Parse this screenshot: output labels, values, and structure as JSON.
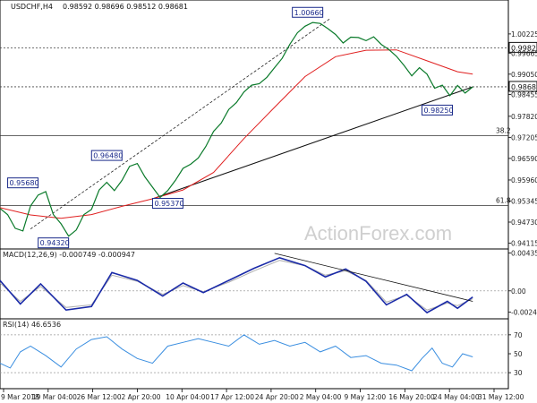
{
  "chart_data": [
    {
      "type": "line",
      "header": {
        "symbol": "USDCHF,H4",
        "ohlc": "0.98592 0.98696 0.98512 0.98681"
      },
      "watermark": "ActionForex.com",
      "y_ticks": [
        1.00225,
        0.9982,
        0.99665,
        0.9905,
        0.98681,
        0.98455,
        0.9782,
        0.97205,
        0.9659,
        0.9596,
        0.95345,
        0.9473,
        0.94115
      ],
      "y_tick_labels": [
        "1.00225",
        "0.99820",
        "0.99665",
        "0.99050",
        "0.98681",
        "0.98455",
        "0.97820",
        "0.97205",
        "0.96590",
        "0.95960",
        "0.95345",
        "0.94730",
        "0.94115"
      ],
      "highlight_levels": [
        {
          "label": "0.99820",
          "value": 0.9982
        },
        {
          "label": "0.98681",
          "value": 0.98681
        }
      ],
      "fib_levels": [
        {
          "label": "38.2",
          "value": 0.9725
        },
        {
          "label": "61.8",
          "value": 0.9521
        }
      ],
      "x_labels": [
        "9 Mar 2018",
        "19 Mar 04:00",
        "26 Mar 12:00",
        "2 Apr 20:00",
        "10 Apr 04:00",
        "17 Apr 12:00",
        "24 Apr 20:00",
        "2 May 04:00",
        "9 May 12:00",
        "16 May 20:00",
        "24 May 04:00",
        "31 May 12:00"
      ],
      "annotations": [
        {
          "label": "1.00660",
          "x": 0.605,
          "y": 1.0066
        },
        {
          "label": "0.96480",
          "x": 0.21,
          "y": 0.9648
        },
        {
          "label": "0.95680",
          "x": 0.045,
          "y": 0.9568
        },
        {
          "label": "0.94320",
          "x": 0.105,
          "y": 0.9432
        },
        {
          "label": "0.95370",
          "x": 0.33,
          "y": 0.9537
        },
        {
          "label": "0.98250",
          "x": 0.86,
          "y": 0.9825
        }
      ],
      "price_series": [
        [
          0.0,
          0.9513
        ],
        [
          0.015,
          0.9495
        ],
        [
          0.03,
          0.9455
        ],
        [
          0.045,
          0.9447
        ],
        [
          0.06,
          0.952
        ],
        [
          0.075,
          0.9552
        ],
        [
          0.09,
          0.9562
        ],
        [
          0.105,
          0.9495
        ],
        [
          0.12,
          0.9468
        ],
        [
          0.135,
          0.9432
        ],
        [
          0.15,
          0.945
        ],
        [
          0.165,
          0.9495
        ],
        [
          0.18,
          0.951
        ],
        [
          0.195,
          0.9567
        ],
        [
          0.21,
          0.9589
        ],
        [
          0.225,
          0.9565
        ],
        [
          0.24,
          0.9595
        ],
        [
          0.255,
          0.9636
        ],
        [
          0.27,
          0.9644
        ],
        [
          0.285,
          0.9605
        ],
        [
          0.3,
          0.9575
        ],
        [
          0.315,
          0.9545
        ],
        [
          0.33,
          0.9565
        ],
        [
          0.345,
          0.9595
        ],
        [
          0.36,
          0.963
        ],
        [
          0.375,
          0.9642
        ],
        [
          0.39,
          0.966
        ],
        [
          0.405,
          0.9694
        ],
        [
          0.42,
          0.9738
        ],
        [
          0.435,
          0.9762
        ],
        [
          0.45,
          0.9802
        ],
        [
          0.465,
          0.9822
        ],
        [
          0.48,
          0.9853
        ],
        [
          0.495,
          0.9873
        ],
        [
          0.51,
          0.9877
        ],
        [
          0.525,
          0.9896
        ],
        [
          0.54,
          0.9924
        ],
        [
          0.555,
          0.9951
        ],
        [
          0.57,
          0.9992
        ],
        [
          0.585,
          1.0026
        ],
        [
          0.6,
          1.0045
        ],
        [
          0.615,
          1.0056
        ],
        [
          0.63,
          1.0053
        ],
        [
          0.645,
          1.0038
        ],
        [
          0.66,
          1.0021
        ],
        [
          0.675,
          0.9996
        ],
        [
          0.69,
          1.0013
        ],
        [
          0.705,
          1.0012
        ],
        [
          0.72,
          1.0003
        ],
        [
          0.735,
          1.0014
        ],
        [
          0.75,
          0.9992
        ],
        [
          0.765,
          0.9977
        ],
        [
          0.78,
          0.9957
        ],
        [
          0.795,
          0.993
        ],
        [
          0.81,
          0.99
        ],
        [
          0.825,
          0.9924
        ],
        [
          0.84,
          0.9905
        ],
        [
          0.855,
          0.9864
        ],
        [
          0.87,
          0.9873
        ],
        [
          0.885,
          0.9842
        ],
        [
          0.9,
          0.9872
        ],
        [
          0.915,
          0.985
        ],
        [
          0.93,
          0.9868
        ]
      ],
      "ma_series": [
        [
          0.0,
          0.9515
        ],
        [
          0.06,
          0.9494
        ],
        [
          0.12,
          0.9484
        ],
        [
          0.18,
          0.9495
        ],
        [
          0.24,
          0.9519
        ],
        [
          0.3,
          0.9541
        ],
        [
          0.36,
          0.9567
        ],
        [
          0.42,
          0.9618
        ],
        [
          0.48,
          0.9717
        ],
        [
          0.54,
          0.9808
        ],
        [
          0.6,
          0.9898
        ],
        [
          0.66,
          0.9956
        ],
        [
          0.72,
          0.9975
        ],
        [
          0.78,
          0.9976
        ],
        [
          0.84,
          0.9944
        ],
        [
          0.9,
          0.9912
        ],
        [
          0.93,
          0.9905
        ]
      ],
      "channel_line": [
        [
          0.06,
          0.9453
        ],
        [
          0.65,
          1.0068
        ]
      ],
      "trend_line": [
        [
          0.3,
          0.9541
        ],
        [
          0.93,
          0.9868
        ]
      ],
      "macd": {
        "label": "MACD(12,26,9) -0.000749 -0.000947",
        "y_ticks": [
          0.004351,
          0.0,
          -0.002448
        ],
        "y_tick_labels": [
          "0.004351",
          "0.00",
          "-0.002448"
        ],
        "main": [
          [
            0.0,
            0.0012
          ],
          [
            0.04,
            -0.0015
          ],
          [
            0.08,
            0.0008
          ],
          [
            0.13,
            -0.0022
          ],
          [
            0.18,
            -0.0018
          ],
          [
            0.22,
            0.0021
          ],
          [
            0.27,
            0.0012
          ],
          [
            0.32,
            -0.0006
          ],
          [
            0.36,
            0.0009
          ],
          [
            0.4,
            -0.0002
          ],
          [
            0.45,
            0.0012
          ],
          [
            0.5,
            0.0026
          ],
          [
            0.55,
            0.0038
          ],
          [
            0.6,
            0.0029
          ],
          [
            0.64,
            0.0016
          ],
          [
            0.68,
            0.0025
          ],
          [
            0.72,
            0.0011
          ],
          [
            0.76,
            -0.0016
          ],
          [
            0.8,
            -0.0004
          ],
          [
            0.84,
            -0.0025
          ],
          [
            0.88,
            -0.0012
          ],
          [
            0.9,
            -0.002
          ],
          [
            0.93,
            -0.0007
          ]
        ],
        "signal": [
          [
            0.0,
            0.0009
          ],
          [
            0.04,
            -0.0012
          ],
          [
            0.08,
            0.0005
          ],
          [
            0.13,
            -0.0019
          ],
          [
            0.18,
            -0.0016
          ],
          [
            0.22,
            0.0018
          ],
          [
            0.27,
            0.0011
          ],
          [
            0.32,
            -0.0004
          ],
          [
            0.36,
            0.0006
          ],
          [
            0.4,
            -0.0001
          ],
          [
            0.45,
            0.001
          ],
          [
            0.5,
            0.0023
          ],
          [
            0.55,
            0.0035
          ],
          [
            0.6,
            0.0029
          ],
          [
            0.64,
            0.0018
          ],
          [
            0.68,
            0.0023
          ],
          [
            0.72,
            0.0012
          ],
          [
            0.76,
            -0.0013
          ],
          [
            0.8,
            -0.0005
          ],
          [
            0.84,
            -0.0022
          ],
          [
            0.88,
            -0.0014
          ],
          [
            0.9,
            -0.0017
          ],
          [
            0.93,
            -0.0009
          ]
        ],
        "trend_line": [
          [
            0.54,
            0.0043
          ],
          [
            0.93,
            -0.0012
          ]
        ]
      },
      "rsi": {
        "label": "RSI(14) 46.6536",
        "y_ticks": [
          70,
          50,
          30
        ],
        "y_tick_labels": [
          "70",
          "50",
          "30"
        ],
        "series": [
          [
            0.0,
            40
          ],
          [
            0.02,
            35
          ],
          [
            0.04,
            52
          ],
          [
            0.06,
            58
          ],
          [
            0.09,
            48
          ],
          [
            0.12,
            36
          ],
          [
            0.15,
            55
          ],
          [
            0.18,
            65
          ],
          [
            0.21,
            68
          ],
          [
            0.24,
            55
          ],
          [
            0.27,
            45
          ],
          [
            0.3,
            40
          ],
          [
            0.33,
            58
          ],
          [
            0.36,
            62
          ],
          [
            0.39,
            66
          ],
          [
            0.42,
            62
          ],
          [
            0.45,
            58
          ],
          [
            0.48,
            70
          ],
          [
            0.51,
            60
          ],
          [
            0.54,
            64
          ],
          [
            0.57,
            58
          ],
          [
            0.6,
            62
          ],
          [
            0.63,
            52
          ],
          [
            0.66,
            58
          ],
          [
            0.69,
            46
          ],
          [
            0.72,
            48
          ],
          [
            0.75,
            40
          ],
          [
            0.78,
            38
          ],
          [
            0.81,
            32
          ],
          [
            0.83,
            45
          ],
          [
            0.85,
            56
          ],
          [
            0.87,
            40
          ],
          [
            0.89,
            36
          ],
          [
            0.91,
            50
          ],
          [
            0.93,
            46.65
          ]
        ]
      }
    }
  ]
}
